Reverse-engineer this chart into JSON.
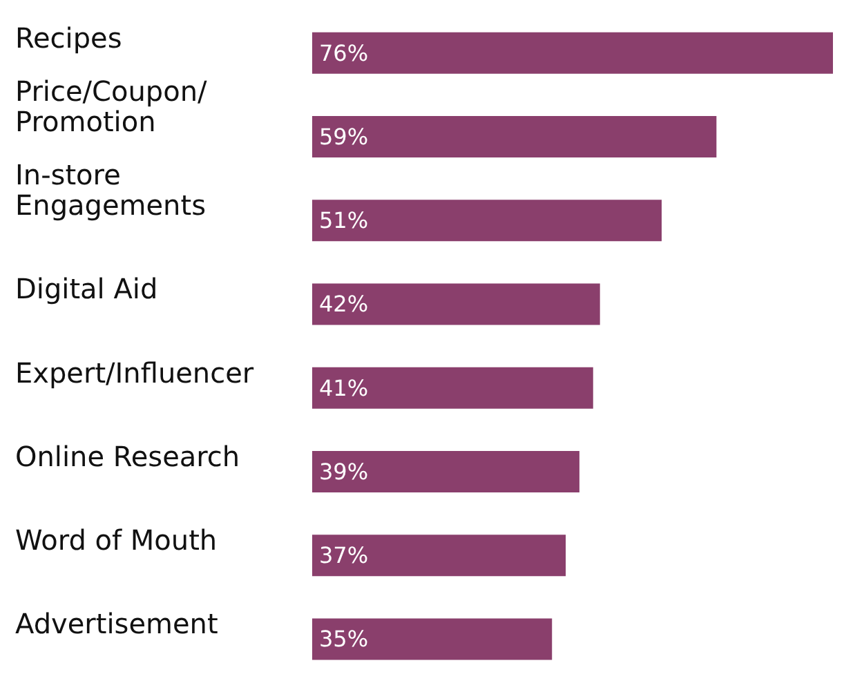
{
  "chart_data": {
    "type": "bar",
    "orientation": "horizontal",
    "categories": [
      "Recipes",
      "Price/Coupon/\nPromotion",
      "In-store\nEngagements",
      "Digital Aid",
      "Expert/Influencer",
      "Online Research",
      "Word of Mouth",
      "Advertisement"
    ],
    "values": [
      76,
      59,
      51,
      42,
      41,
      39,
      37,
      35
    ],
    "value_labels": [
      "76%",
      "59%",
      "51%",
      "42%",
      "41%",
      "39%",
      "37%",
      "35%"
    ],
    "color": "#8a3f6c"
  }
}
